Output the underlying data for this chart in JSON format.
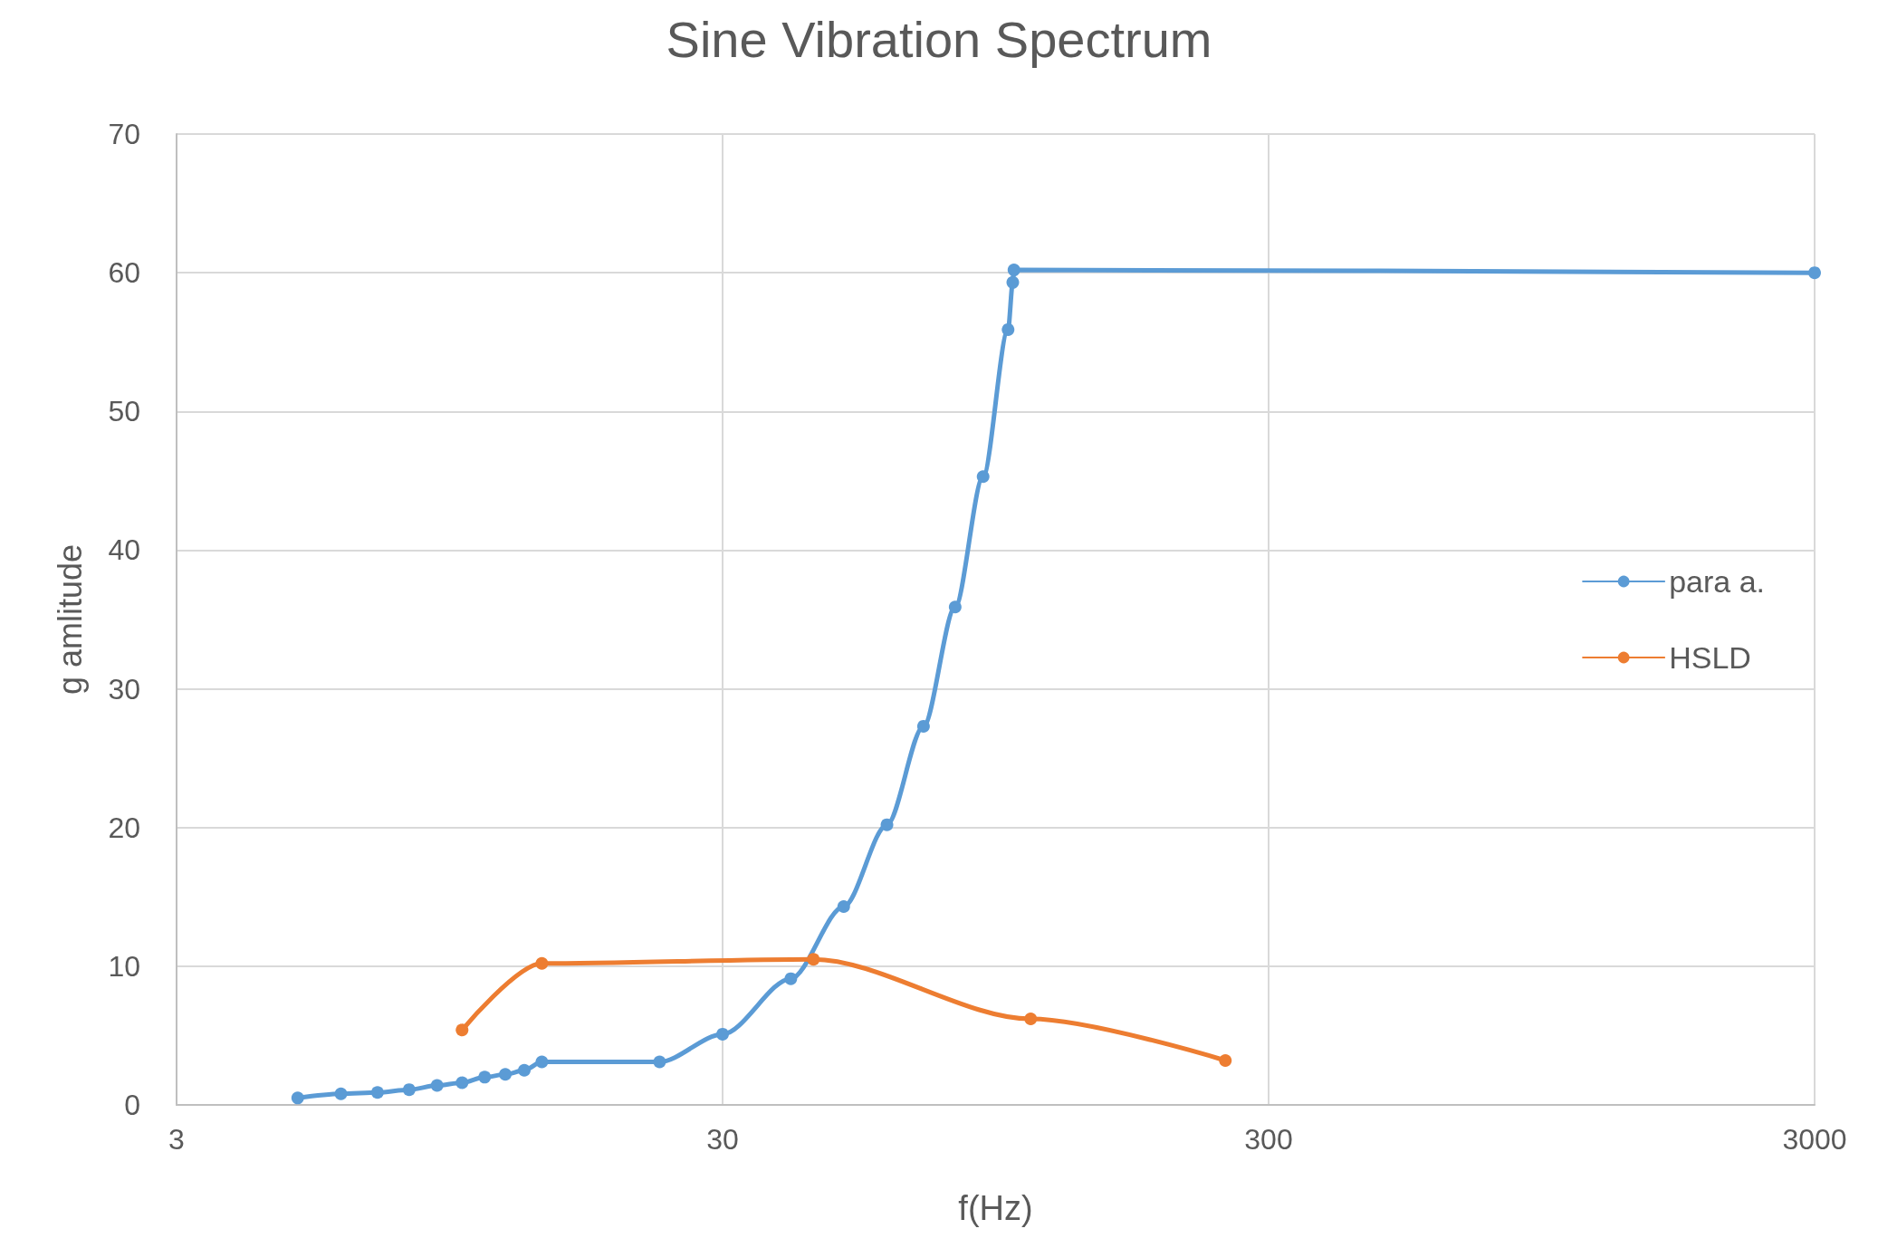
{
  "chart_data": {
    "type": "line",
    "title": "Sine Vibration Spectrum",
    "xlabel": "f(Hz)",
    "ylabel": "g amlitude",
    "log": "x",
    "xlim": [
      3,
      3000
    ],
    "xticks": [
      3,
      30,
      300,
      3000
    ],
    "ylim": [
      0,
      70
    ],
    "yticks": [
      0,
      10,
      20,
      30,
      40,
      50,
      60,
      70
    ],
    "grid": true,
    "legend": "right",
    "marker": "circle",
    "line_style": "solid",
    "series": [
      {
        "name": "para a.",
        "color": "#5b9bd5",
        "x": [
          5,
          6,
          7,
          8,
          9,
          10,
          11,
          12,
          13,
          14,
          23,
          30,
          40,
          50,
          60,
          70,
          80,
          90,
          100,
          102,
          102.5,
          3000
        ],
        "values": [
          0.5,
          0.8,
          0.9,
          1.1,
          1.4,
          1.6,
          2.0,
          2.2,
          2.5,
          3.1,
          3.1,
          5.1,
          9.1,
          14.3,
          20.2,
          27.3,
          35.9,
          45.3,
          55.9,
          59.3,
          60.2,
          60
        ]
      },
      {
        "name": "HSLD",
        "color": "#ed7d31",
        "x": [
          10,
          14,
          44,
          110,
          250
        ],
        "values": [
          5.4,
          10.2,
          10.5,
          6.2,
          3.2
        ]
      }
    ]
  }
}
